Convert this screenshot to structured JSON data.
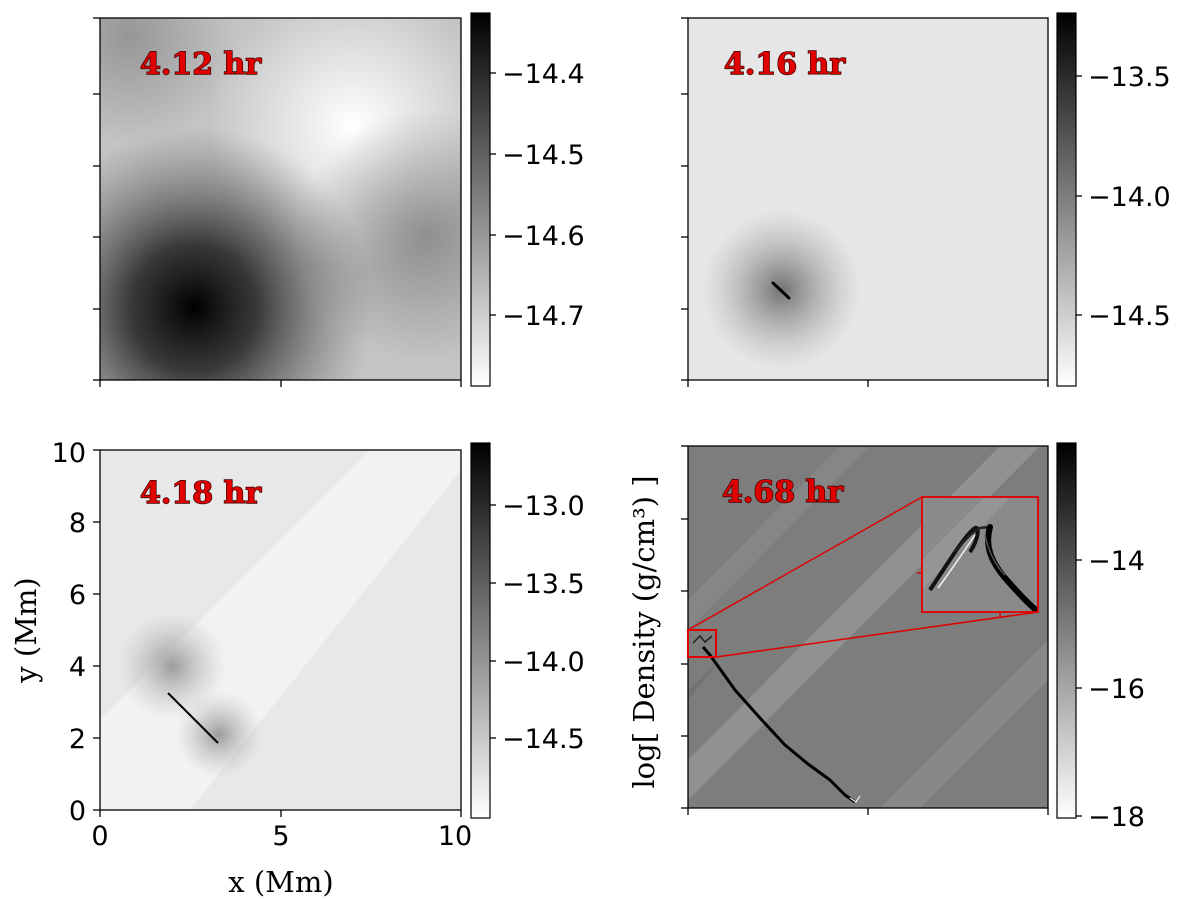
{
  "chart_data": [
    {
      "type": "heatmap",
      "panel": "top-left",
      "time_label": "4.12 hr",
      "colorbar": {
        "ticks": [
          "−14.4",
          "−14.5",
          "−14.6",
          "−14.7"
        ],
        "range": [
          -14.78,
          -14.33
        ]
      },
      "x_range": [
        0,
        10
      ],
      "y_range": [
        0,
        10
      ],
      "features": [
        "dark blob near (2.5, 3.5)",
        "bright region near (7, 7.5)"
      ]
    },
    {
      "type": "heatmap",
      "panel": "top-right",
      "time_label": "4.16 hr",
      "colorbar": {
        "ticks": [
          "−13.5",
          "−14.0",
          "−14.5"
        ],
        "range": [
          -14.75,
          -13.25
        ]
      },
      "x_range": [
        0,
        10
      ],
      "y_range": [
        0,
        10
      ]
    },
    {
      "type": "heatmap",
      "panel": "bottom-left",
      "time_label": "4.18 hr",
      "xlabel": "x (Mm)",
      "ylabel": "y (Mm)",
      "x_ticks": [
        "0",
        "5",
        "10"
      ],
      "y_ticks": [
        "0",
        "2",
        "4",
        "6",
        "8",
        "10"
      ],
      "x_range": [
        0,
        10
      ],
      "y_range": [
        0,
        10
      ],
      "colorbar": {
        "ticks": [
          "−13.0",
          "−13.5",
          "−14.0",
          "−14.5"
        ],
        "range": [
          -14.75,
          -12.75
        ]
      }
    },
    {
      "type": "heatmap",
      "panel": "bottom-right",
      "time_label": "4.68 hr",
      "colorbar_label": "log[ Density (g/cm³) ]",
      "colorbar": {
        "ticks": [
          "−14",
          "−16",
          "−18"
        ],
        "range": [
          -18,
          -13
        ]
      },
      "x_range": [
        0,
        10
      ],
      "y_range": [
        0,
        10
      ],
      "inset": "zoomed view of region near (0, 4.5)"
    }
  ],
  "colors": {
    "time_label": "#e00000",
    "inset_box": "#e00000"
  }
}
